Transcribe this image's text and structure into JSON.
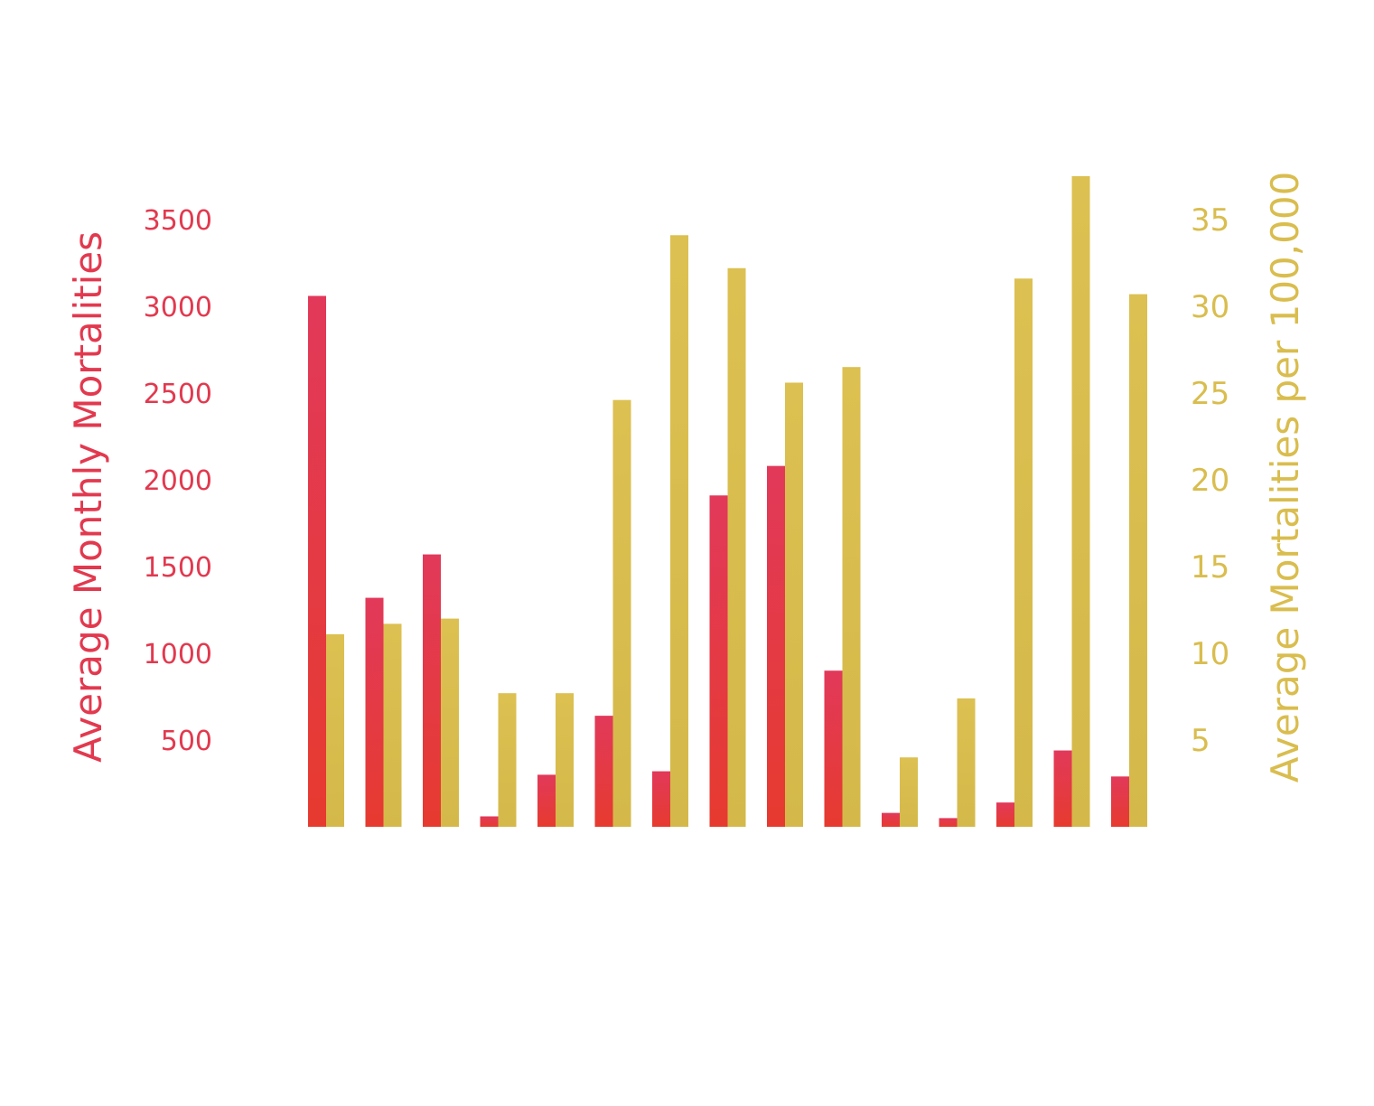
{
  "chart_data": {
    "type": "bar",
    "title": "",
    "categories": [
      "",
      "",
      "",
      "",
      "",
      "",
      "",
      "",
      "",
      "",
      "",
      "",
      "",
      "",
      ""
    ],
    "series": [
      {
        "name": "Average Monthly Mortalities",
        "axis": "left",
        "color": "#e2394f",
        "gradient_bottom": "#e63a2f",
        "values": [
          3060,
          1320,
          1570,
          60,
          300,
          640,
          320,
          1910,
          2080,
          900,
          80,
          50,
          140,
          440,
          290
        ]
      },
      {
        "name": "Average Mortalities per 100,000",
        "axis": "right",
        "color": "#d9bd4e",
        "values": [
          11.1,
          11.7,
          12.0,
          7.7,
          7.7,
          24.6,
          34.1,
          32.2,
          25.6,
          26.5,
          4.0,
          7.4,
          31.6,
          37.5,
          30.7
        ]
      }
    ],
    "y_left": {
      "label": "Average Monthly Mortalities",
      "ticks": [
        500,
        1000,
        1500,
        2000,
        2500,
        3000,
        3500
      ],
      "range": [
        0,
        3500
      ]
    },
    "y_right": {
      "label": "Average Mortalities per 100,000",
      "ticks": [
        5,
        10,
        15,
        20,
        25,
        30,
        35
      ],
      "range": [
        0,
        35
      ]
    },
    "grid": false,
    "legend": "none"
  }
}
